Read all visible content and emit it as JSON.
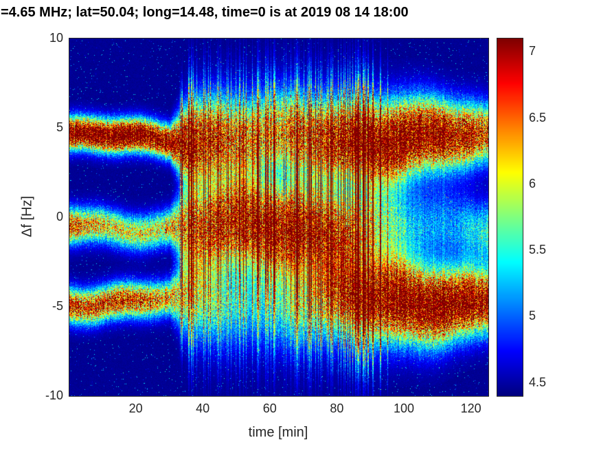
{
  "chart_data": {
    "type": "heatmap",
    "title": "=4.65 MHz;  lat=50.04; long=14.48, time=0 is at 2019 08 14 18:00",
    "xlabel": "time [min]",
    "ylabel": "Δf [Hz]",
    "xlim": [
      0,
      125
    ],
    "ylim": [
      -10,
      10
    ],
    "xticks": [
      20,
      40,
      60,
      80,
      100,
      120
    ],
    "yticks": [
      10,
      5,
      0,
      -5,
      -10
    ],
    "grid": false,
    "colormap": "jet",
    "colorbar": {
      "position": "right",
      "vmin": 4.4,
      "vmax": 7.1,
      "ticks": [
        4.5,
        5,
        5.5,
        6,
        6.5,
        7
      ],
      "tick_labels": [
        "4.5",
        "5",
        "5.5",
        "6",
        "6.5",
        "7"
      ]
    },
    "background_value": 4.42,
    "bands": [
      {
        "name": "upper-band",
        "center": 4.45,
        "sigma0": 0.45,
        "widen": 1.1,
        "amp": 3.3,
        "phase": 0.5
      },
      {
        "name": "middle-band",
        "center": -0.55,
        "sigma0": 0.5,
        "widen": 1.2,
        "amp": 3.2,
        "phase": 2.1
      },
      {
        "name": "lower-band",
        "center": -4.7,
        "sigma0": 0.5,
        "widen": 1.15,
        "amp": 3.2,
        "phase": 4.2
      }
    ],
    "widen_profile": {
      "pre": 0.12,
      "start": 30,
      "full": 36,
      "hold_until": 90,
      "end_factor": 0.55
    },
    "noise": {
      "speckle_prob": 0.015,
      "speckle_amp": 0.85,
      "stripe_prob": 0.28,
      "stripe_gain": 1.6,
      "stripe_until": 95
    }
  }
}
